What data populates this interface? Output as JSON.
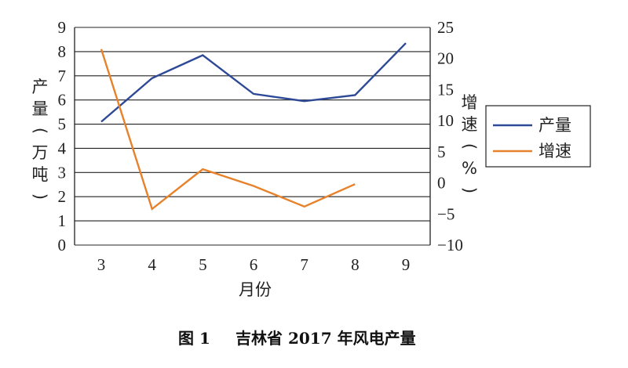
{
  "caption": {
    "number": "图 1",
    "text": "吉林省 2017 年风电产量"
  },
  "chart_data": {
    "type": "line",
    "xlabel": "月份",
    "ylabel_left": "产量(万吨)",
    "ylabel_right": "增速(%)",
    "x": [
      3,
      4,
      5,
      6,
      7,
      8,
      9
    ],
    "left_axis": {
      "range": [
        0,
        9
      ],
      "ticks": [
        0,
        1,
        2,
        3,
        4,
        5,
        6,
        7,
        8,
        9
      ]
    },
    "right_axis": {
      "range": [
        -10,
        25
      ],
      "ticks": [
        -10,
        -5,
        0,
        5,
        10,
        15,
        20,
        25
      ]
    },
    "grid": true,
    "legend_position": "right",
    "series": [
      {
        "name": "产量",
        "axis": "left",
        "color": "#2e4a96",
        "x": [
          3,
          4,
          5,
          6,
          7,
          8,
          9
        ],
        "values": [
          5.1,
          6.9,
          7.85,
          6.25,
          5.95,
          6.2,
          8.35
        ]
      },
      {
        "name": "增速",
        "axis": "right",
        "color": "#e8822a",
        "x": [
          3,
          4,
          5,
          6,
          7,
          8
        ],
        "values": [
          21.5,
          -4.2,
          2.2,
          -0.5,
          -3.8,
          -0.2
        ]
      }
    ]
  }
}
